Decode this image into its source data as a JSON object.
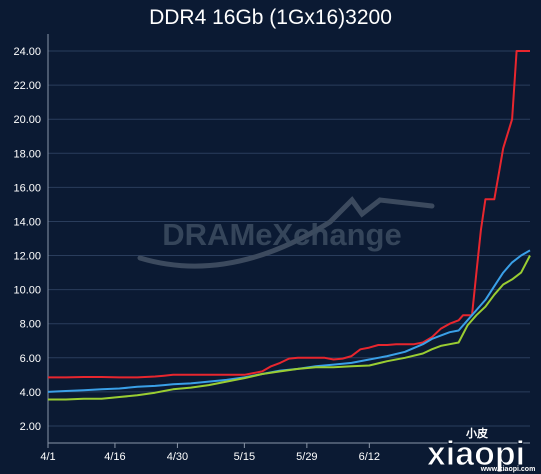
{
  "chart_data": {
    "type": "line",
    "title": "DDR4 16Gb (1Gx16)3200",
    "xlabel": "",
    "ylabel": "",
    "x_ticks": [
      "4/1",
      "4/16",
      "4/30",
      "5/15",
      "5/29",
      "6/12"
    ],
    "ylim": [
      1.0,
      25.0
    ],
    "y_ticks": [
      "2.00",
      "4.00",
      "6.00",
      "8.00",
      "10.00",
      "12.00",
      "14.00",
      "16.00",
      "18.00",
      "20.00",
      "22.00",
      "24.00"
    ],
    "grid": true,
    "legend": "none",
    "series": [
      {
        "color": "#e8262e",
        "values": [
          [
            0,
            4.85
          ],
          [
            4,
            4.85
          ],
          [
            8,
            4.87
          ],
          [
            12,
            4.87
          ],
          [
            16,
            4.85
          ],
          [
            20,
            4.85
          ],
          [
            24,
            4.9
          ],
          [
            26,
            4.95
          ],
          [
            28,
            5.0
          ],
          [
            32,
            5.0
          ],
          [
            36,
            5.0
          ],
          [
            40,
            5.0
          ],
          [
            44,
            5.0
          ],
          [
            46,
            5.1
          ],
          [
            48,
            5.2
          ],
          [
            50,
            5.5
          ],
          [
            52,
            5.7
          ],
          [
            54,
            5.95
          ],
          [
            56,
            6.0
          ],
          [
            60,
            6.0
          ],
          [
            62,
            6.0
          ],
          [
            64,
            5.9
          ],
          [
            66,
            5.95
          ],
          [
            68,
            6.1
          ],
          [
            70,
            6.5
          ],
          [
            72,
            6.6
          ],
          [
            74,
            6.75
          ],
          [
            76,
            6.75
          ],
          [
            78,
            6.8
          ],
          [
            82,
            6.8
          ],
          [
            84,
            6.9
          ],
          [
            86,
            7.2
          ],
          [
            88,
            7.7
          ],
          [
            90,
            8.0
          ],
          [
            92,
            8.2
          ],
          [
            93,
            8.5
          ],
          [
            95,
            8.5
          ],
          [
            96,
            11.0
          ],
          [
            97,
            13.5
          ],
          [
            98,
            15.3
          ],
          [
            100,
            15.3
          ],
          [
            101,
            16.8
          ],
          [
            102,
            18.3
          ],
          [
            104,
            20.0
          ],
          [
            105,
            24.0
          ],
          [
            108,
            24.0
          ]
        ]
      },
      {
        "color": "#3aa0e8",
        "values": [
          [
            0,
            4.0
          ],
          [
            4,
            4.05
          ],
          [
            8,
            4.1
          ],
          [
            12,
            4.15
          ],
          [
            16,
            4.2
          ],
          [
            20,
            4.3
          ],
          [
            24,
            4.35
          ],
          [
            26,
            4.4
          ],
          [
            28,
            4.45
          ],
          [
            32,
            4.5
          ],
          [
            36,
            4.6
          ],
          [
            40,
            4.7
          ],
          [
            44,
            4.85
          ],
          [
            48,
            5.05
          ],
          [
            52,
            5.25
          ],
          [
            56,
            5.35
          ],
          [
            60,
            5.5
          ],
          [
            64,
            5.6
          ],
          [
            68,
            5.7
          ],
          [
            72,
            5.9
          ],
          [
            74,
            6.0
          ],
          [
            76,
            6.1
          ],
          [
            80,
            6.35
          ],
          [
            84,
            6.8
          ],
          [
            86,
            7.1
          ],
          [
            88,
            7.3
          ],
          [
            90,
            7.5
          ],
          [
            92,
            7.6
          ],
          [
            94,
            8.2
          ],
          [
            96,
            8.8
          ],
          [
            98,
            9.4
          ],
          [
            100,
            10.2
          ],
          [
            102,
            11.0
          ],
          [
            104,
            11.6
          ],
          [
            106,
            12.0
          ],
          [
            108,
            12.3
          ]
        ]
      },
      {
        "color": "#9acd32",
        "values": [
          [
            0,
            3.55
          ],
          [
            4,
            3.55
          ],
          [
            8,
            3.6
          ],
          [
            12,
            3.6
          ],
          [
            16,
            3.7
          ],
          [
            20,
            3.8
          ],
          [
            24,
            3.95
          ],
          [
            26,
            4.05
          ],
          [
            28,
            4.15
          ],
          [
            32,
            4.25
          ],
          [
            36,
            4.4
          ],
          [
            40,
            4.6
          ],
          [
            44,
            4.8
          ],
          [
            48,
            5.05
          ],
          [
            52,
            5.2
          ],
          [
            56,
            5.35
          ],
          [
            60,
            5.45
          ],
          [
            64,
            5.45
          ],
          [
            68,
            5.5
          ],
          [
            72,
            5.55
          ],
          [
            76,
            5.8
          ],
          [
            80,
            6.0
          ],
          [
            84,
            6.25
          ],
          [
            86,
            6.5
          ],
          [
            88,
            6.7
          ],
          [
            90,
            6.8
          ],
          [
            92,
            6.9
          ],
          [
            94,
            7.9
          ],
          [
            96,
            8.5
          ],
          [
            98,
            9.0
          ],
          [
            100,
            9.7
          ],
          [
            102,
            10.3
          ],
          [
            104,
            10.6
          ],
          [
            106,
            11.0
          ],
          [
            108,
            12.0
          ]
        ]
      }
    ],
    "x_tick_positions": [
      0,
      15,
      29,
      44,
      58,
      72
    ]
  },
  "watermark": {
    "text": "DRAMeXchange"
  },
  "corner_logo": {
    "text": "xiaopi",
    "sub": "小皮",
    "url": "www.xiaopi.com"
  }
}
